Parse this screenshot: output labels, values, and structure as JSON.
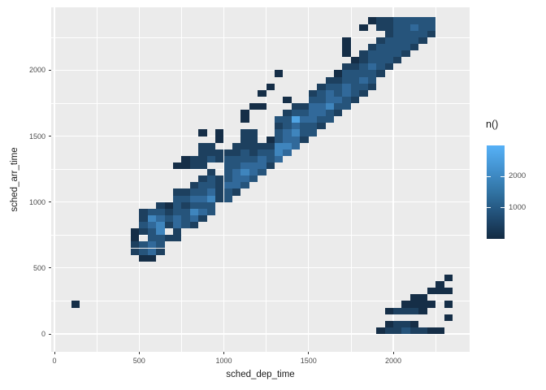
{
  "figure": {
    "background": "#FFFFFF",
    "panel_background": "#EBEBEB",
    "grid_color": "#FFFFFF",
    "axis_text_color": "#4D4D4D",
    "axis_title_color": "#1A1A1A",
    "tick_color": "#333333"
  },
  "chart_data": {
    "type": "heatmap",
    "subtype": "bin2d",
    "title": "",
    "xlabel": "sched_dep_time",
    "ylabel": "sched_arr_time",
    "x_ticks": [
      0,
      500,
      1000,
      1500,
      2000
    ],
    "y_ticks": [
      0,
      500,
      1000,
      1500,
      2000
    ],
    "x_minor_ticks": [
      250,
      750,
      1250,
      1750,
      2250
    ],
    "y_minor_ticks": [
      250,
      750,
      1250,
      1750,
      2250
    ],
    "xlim": [
      -20,
      2450
    ],
    "ylim": [
      -60,
      2480
    ],
    "grid": true,
    "binwidth": 50,
    "bin_origin": 0,
    "bins_format": "[x_bin_index, y_bin_index, intensity_level]; bin covers index*binwidth to (index+1)*binwidth in data units",
    "level_counts": [
      150,
      500,
      900,
      1400,
      2000,
      2700
    ],
    "level_colors": [
      "#152E47",
      "#1D405F",
      "#26547B",
      "#31699A",
      "#3F85BD",
      "#4FA3E3"
    ],
    "legend": {
      "title": "n()",
      "position": "right",
      "tick_counts": [
        2000,
        1000
      ],
      "tick_labels": [
        "2000",
        "1000"
      ],
      "min_count": 0,
      "max_count": 3000,
      "color_low": "#132B43",
      "color_high": "#56B1F7",
      "gradient_stops": [
        "#56B1F7",
        "#4392CF",
        "#3173A3",
        "#214E75",
        "#132B43"
      ]
    },
    "bins": [
      [
        2,
        4,
        0
      ],
      [
        9,
        12,
        1
      ],
      [
        9,
        13,
        1
      ],
      [
        9,
        14,
        0
      ],
      [
        9,
        15,
        0
      ],
      [
        10,
        11,
        0
      ],
      [
        10,
        12,
        2
      ],
      [
        10,
        13,
        2
      ],
      [
        10,
        15,
        1
      ],
      [
        10,
        16,
        2
      ],
      [
        10,
        17,
        1
      ],
      [
        10,
        18,
        1
      ],
      [
        11,
        11,
        0
      ],
      [
        11,
        12,
        3
      ],
      [
        11,
        13,
        3
      ],
      [
        11,
        14,
        2
      ],
      [
        11,
        15,
        2
      ],
      [
        11,
        16,
        3
      ],
      [
        11,
        17,
        4
      ],
      [
        11,
        18,
        2
      ],
      [
        12,
        12,
        1
      ],
      [
        12,
        13,
        2
      ],
      [
        12,
        14,
        2
      ],
      [
        12,
        15,
        4
      ],
      [
        12,
        16,
        4
      ],
      [
        12,
        17,
        3
      ],
      [
        12,
        18,
        2
      ],
      [
        12,
        19,
        1
      ],
      [
        13,
        14,
        1
      ],
      [
        13,
        16,
        1
      ],
      [
        13,
        17,
        2
      ],
      [
        13,
        18,
        1
      ],
      [
        13,
        19,
        0
      ],
      [
        14,
        14,
        1
      ],
      [
        14,
        15,
        1
      ],
      [
        14,
        16,
        3
      ],
      [
        14,
        17,
        3
      ],
      [
        14,
        18,
        2
      ],
      [
        14,
        19,
        2
      ],
      [
        14,
        20,
        2
      ],
      [
        14,
        21,
        1
      ],
      [
        14,
        25,
        0
      ],
      [
        15,
        16,
        2
      ],
      [
        15,
        17,
        2
      ],
      [
        15,
        18,
        2
      ],
      [
        15,
        19,
        1
      ],
      [
        15,
        20,
        2
      ],
      [
        15,
        21,
        1
      ],
      [
        15,
        25,
        0
      ],
      [
        15,
        26,
        0
      ],
      [
        16,
        16,
        1
      ],
      [
        16,
        17,
        3
      ],
      [
        16,
        18,
        4
      ],
      [
        16,
        19,
        2
      ],
      [
        16,
        20,
        3
      ],
      [
        16,
        21,
        2
      ],
      [
        16,
        22,
        1
      ],
      [
        16,
        25,
        1
      ],
      [
        16,
        26,
        1
      ],
      [
        17,
        17,
        1
      ],
      [
        17,
        18,
        3
      ],
      [
        17,
        19,
        2
      ],
      [
        17,
        20,
        3
      ],
      [
        17,
        21,
        2
      ],
      [
        17,
        22,
        2
      ],
      [
        17,
        23,
        1
      ],
      [
        17,
        25,
        1
      ],
      [
        17,
        26,
        1
      ],
      [
        17,
        27,
        1
      ],
      [
        17,
        28,
        1
      ],
      [
        17,
        30,
        0
      ],
      [
        18,
        18,
        2
      ],
      [
        18,
        19,
        2
      ],
      [
        18,
        20,
        4
      ],
      [
        18,
        21,
        3
      ],
      [
        18,
        22,
        2
      ],
      [
        18,
        23,
        2
      ],
      [
        18,
        24,
        1
      ],
      [
        18,
        26,
        2
      ],
      [
        18,
        27,
        1
      ],
      [
        18,
        28,
        1
      ],
      [
        19,
        20,
        1
      ],
      [
        19,
        21,
        1
      ],
      [
        19,
        22,
        1
      ],
      [
        19,
        23,
        1
      ],
      [
        19,
        26,
        1
      ],
      [
        19,
        27,
        1
      ],
      [
        19,
        29,
        0
      ],
      [
        19,
        30,
        0
      ],
      [
        20,
        20,
        2
      ],
      [
        20,
        21,
        2
      ],
      [
        20,
        22,
        3
      ],
      [
        20,
        23,
        2
      ],
      [
        20,
        24,
        2
      ],
      [
        20,
        25,
        2
      ],
      [
        20,
        26,
        2
      ],
      [
        20,
        27,
        1
      ],
      [
        21,
        21,
        1
      ],
      [
        21,
        22,
        3
      ],
      [
        21,
        23,
        3
      ],
      [
        21,
        24,
        3
      ],
      [
        21,
        25,
        2
      ],
      [
        21,
        26,
        2
      ],
      [
        21,
        27,
        1
      ],
      [
        21,
        28,
        1
      ],
      [
        22,
        22,
        2
      ],
      [
        22,
        23,
        3
      ],
      [
        22,
        24,
        4
      ],
      [
        22,
        25,
        3
      ],
      [
        22,
        26,
        2
      ],
      [
        22,
        27,
        2
      ],
      [
        22,
        28,
        1
      ],
      [
        22,
        29,
        1
      ],
      [
        22,
        30,
        1
      ],
      [
        22,
        32,
        0
      ],
      [
        22,
        33,
        0
      ],
      [
        23,
        23,
        2
      ],
      [
        23,
        24,
        3
      ],
      [
        23,
        25,
        3
      ],
      [
        23,
        26,
        2
      ],
      [
        23,
        27,
        1
      ],
      [
        23,
        28,
        1
      ],
      [
        23,
        29,
        1
      ],
      [
        23,
        30,
        1
      ],
      [
        23,
        34,
        0
      ],
      [
        24,
        24,
        2
      ],
      [
        24,
        25,
        3
      ],
      [
        24,
        26,
        3
      ],
      [
        24,
        27,
        2
      ],
      [
        24,
        28,
        1
      ],
      [
        24,
        34,
        0
      ],
      [
        24,
        36,
        0
      ],
      [
        25,
        25,
        1
      ],
      [
        25,
        26,
        2
      ],
      [
        25,
        27,
        2
      ],
      [
        25,
        28,
        1
      ],
      [
        25,
        29,
        0
      ],
      [
        25,
        37,
        0
      ],
      [
        26,
        26,
        3
      ],
      [
        26,
        27,
        4
      ],
      [
        26,
        28,
        4
      ],
      [
        26,
        29,
        2
      ],
      [
        26,
        30,
        2
      ],
      [
        26,
        31,
        1
      ],
      [
        26,
        32,
        2
      ],
      [
        26,
        39,
        0
      ],
      [
        27,
        27,
        3
      ],
      [
        27,
        28,
        4
      ],
      [
        27,
        29,
        3
      ],
      [
        27,
        30,
        3
      ],
      [
        27,
        31,
        2
      ],
      [
        27,
        32,
        2
      ],
      [
        27,
        33,
        1
      ],
      [
        27,
        35,
        0
      ],
      [
        28,
        28,
        3
      ],
      [
        28,
        29,
        3
      ],
      [
        28,
        30,
        4
      ],
      [
        28,
        31,
        3
      ],
      [
        28,
        32,
        5
      ],
      [
        28,
        33,
        2
      ],
      [
        28,
        34,
        1
      ],
      [
        29,
        29,
        1
      ],
      [
        29,
        30,
        2
      ],
      [
        29,
        31,
        2
      ],
      [
        29,
        32,
        3
      ],
      [
        29,
        33,
        2
      ],
      [
        29,
        34,
        1
      ],
      [
        30,
        30,
        2
      ],
      [
        30,
        31,
        2
      ],
      [
        30,
        32,
        3
      ],
      [
        30,
        33,
        3
      ],
      [
        30,
        34,
        3
      ],
      [
        30,
        35,
        2
      ],
      [
        30,
        36,
        1
      ],
      [
        31,
        31,
        1
      ],
      [
        31,
        32,
        2
      ],
      [
        31,
        33,
        3
      ],
      [
        31,
        34,
        3
      ],
      [
        31,
        35,
        2
      ],
      [
        31,
        36,
        2
      ],
      [
        31,
        37,
        1
      ],
      [
        32,
        32,
        2
      ],
      [
        32,
        33,
        2
      ],
      [
        32,
        34,
        4
      ],
      [
        32,
        35,
        3
      ],
      [
        32,
        36,
        3
      ],
      [
        32,
        37,
        2
      ],
      [
        32,
        38,
        1
      ],
      [
        33,
        33,
        1
      ],
      [
        33,
        34,
        2
      ],
      [
        33,
        35,
        3
      ],
      [
        33,
        36,
        2
      ],
      [
        33,
        37,
        2
      ],
      [
        33,
        38,
        1
      ],
      [
        33,
        39,
        0
      ],
      [
        34,
        34,
        2
      ],
      [
        34,
        35,
        2
      ],
      [
        34,
        36,
        3
      ],
      [
        34,
        37,
        3
      ],
      [
        34,
        38,
        2
      ],
      [
        34,
        39,
        2
      ],
      [
        34,
        40,
        1
      ],
      [
        34,
        42,
        0
      ],
      [
        34,
        43,
        0
      ],
      [
        34,
        44,
        0
      ],
      [
        35,
        35,
        1
      ],
      [
        35,
        36,
        2
      ],
      [
        35,
        37,
        2
      ],
      [
        35,
        38,
        2
      ],
      [
        35,
        39,
        2
      ],
      [
        35,
        40,
        1
      ],
      [
        35,
        41,
        0
      ],
      [
        36,
        36,
        1
      ],
      [
        36,
        37,
        2
      ],
      [
        36,
        38,
        3
      ],
      [
        36,
        39,
        2
      ],
      [
        36,
        40,
        2
      ],
      [
        36,
        41,
        1
      ],
      [
        36,
        42,
        1
      ],
      [
        36,
        46,
        0
      ],
      [
        37,
        37,
        1
      ],
      [
        37,
        38,
        2
      ],
      [
        37,
        39,
        2
      ],
      [
        37,
        40,
        3
      ],
      [
        37,
        41,
        2
      ],
      [
        37,
        42,
        2
      ],
      [
        37,
        43,
        1
      ],
      [
        37,
        47,
        0
      ],
      [
        38,
        0,
        0
      ],
      [
        38,
        39,
        1
      ],
      [
        38,
        40,
        2
      ],
      [
        38,
        41,
        2
      ],
      [
        38,
        42,
        2
      ],
      [
        38,
        43,
        2
      ],
      [
        38,
        44,
        1
      ],
      [
        38,
        46,
        1
      ],
      [
        38,
        47,
        1
      ],
      [
        39,
        0,
        1
      ],
      [
        39,
        1,
        0
      ],
      [
        39,
        3,
        0
      ],
      [
        39,
        40,
        1
      ],
      [
        39,
        41,
        2
      ],
      [
        39,
        42,
        2
      ],
      [
        39,
        43,
        2
      ],
      [
        39,
        44,
        2
      ],
      [
        39,
        45,
        1
      ],
      [
        39,
        46,
        1
      ],
      [
        39,
        47,
        1
      ],
      [
        40,
        0,
        1
      ],
      [
        40,
        1,
        1
      ],
      [
        40,
        3,
        1
      ],
      [
        40,
        41,
        1
      ],
      [
        40,
        42,
        2
      ],
      [
        40,
        43,
        2
      ],
      [
        40,
        44,
        2
      ],
      [
        40,
        45,
        2
      ],
      [
        40,
        46,
        2
      ],
      [
        40,
        47,
        2
      ],
      [
        41,
        0,
        2
      ],
      [
        41,
        1,
        1
      ],
      [
        41,
        3,
        1
      ],
      [
        41,
        4,
        0
      ],
      [
        41,
        42,
        1
      ],
      [
        41,
        43,
        2
      ],
      [
        41,
        44,
        2
      ],
      [
        41,
        45,
        2
      ],
      [
        41,
        46,
        2
      ],
      [
        41,
        47,
        2
      ],
      [
        42,
        0,
        1
      ],
      [
        42,
        1,
        0
      ],
      [
        42,
        3,
        1
      ],
      [
        42,
        4,
        0
      ],
      [
        42,
        5,
        0
      ],
      [
        42,
        43,
        1
      ],
      [
        42,
        44,
        2
      ],
      [
        42,
        45,
        2
      ],
      [
        42,
        46,
        3
      ],
      [
        42,
        47,
        2
      ],
      [
        43,
        0,
        1
      ],
      [
        43,
        3,
        0
      ],
      [
        43,
        4,
        0
      ],
      [
        43,
        5,
        0
      ],
      [
        43,
        44,
        1
      ],
      [
        43,
        45,
        2
      ],
      [
        43,
        46,
        2
      ],
      [
        43,
        47,
        2
      ],
      [
        44,
        0,
        0
      ],
      [
        44,
        4,
        0
      ],
      [
        44,
        6,
        0
      ],
      [
        44,
        45,
        1
      ],
      [
        44,
        46,
        2
      ],
      [
        44,
        47,
        2
      ],
      [
        45,
        0,
        0
      ],
      [
        45,
        6,
        0
      ],
      [
        45,
        7,
        0
      ],
      [
        46,
        2,
        0
      ],
      [
        46,
        4,
        0
      ],
      [
        46,
        6,
        0
      ],
      [
        46,
        8,
        0
      ]
    ]
  }
}
